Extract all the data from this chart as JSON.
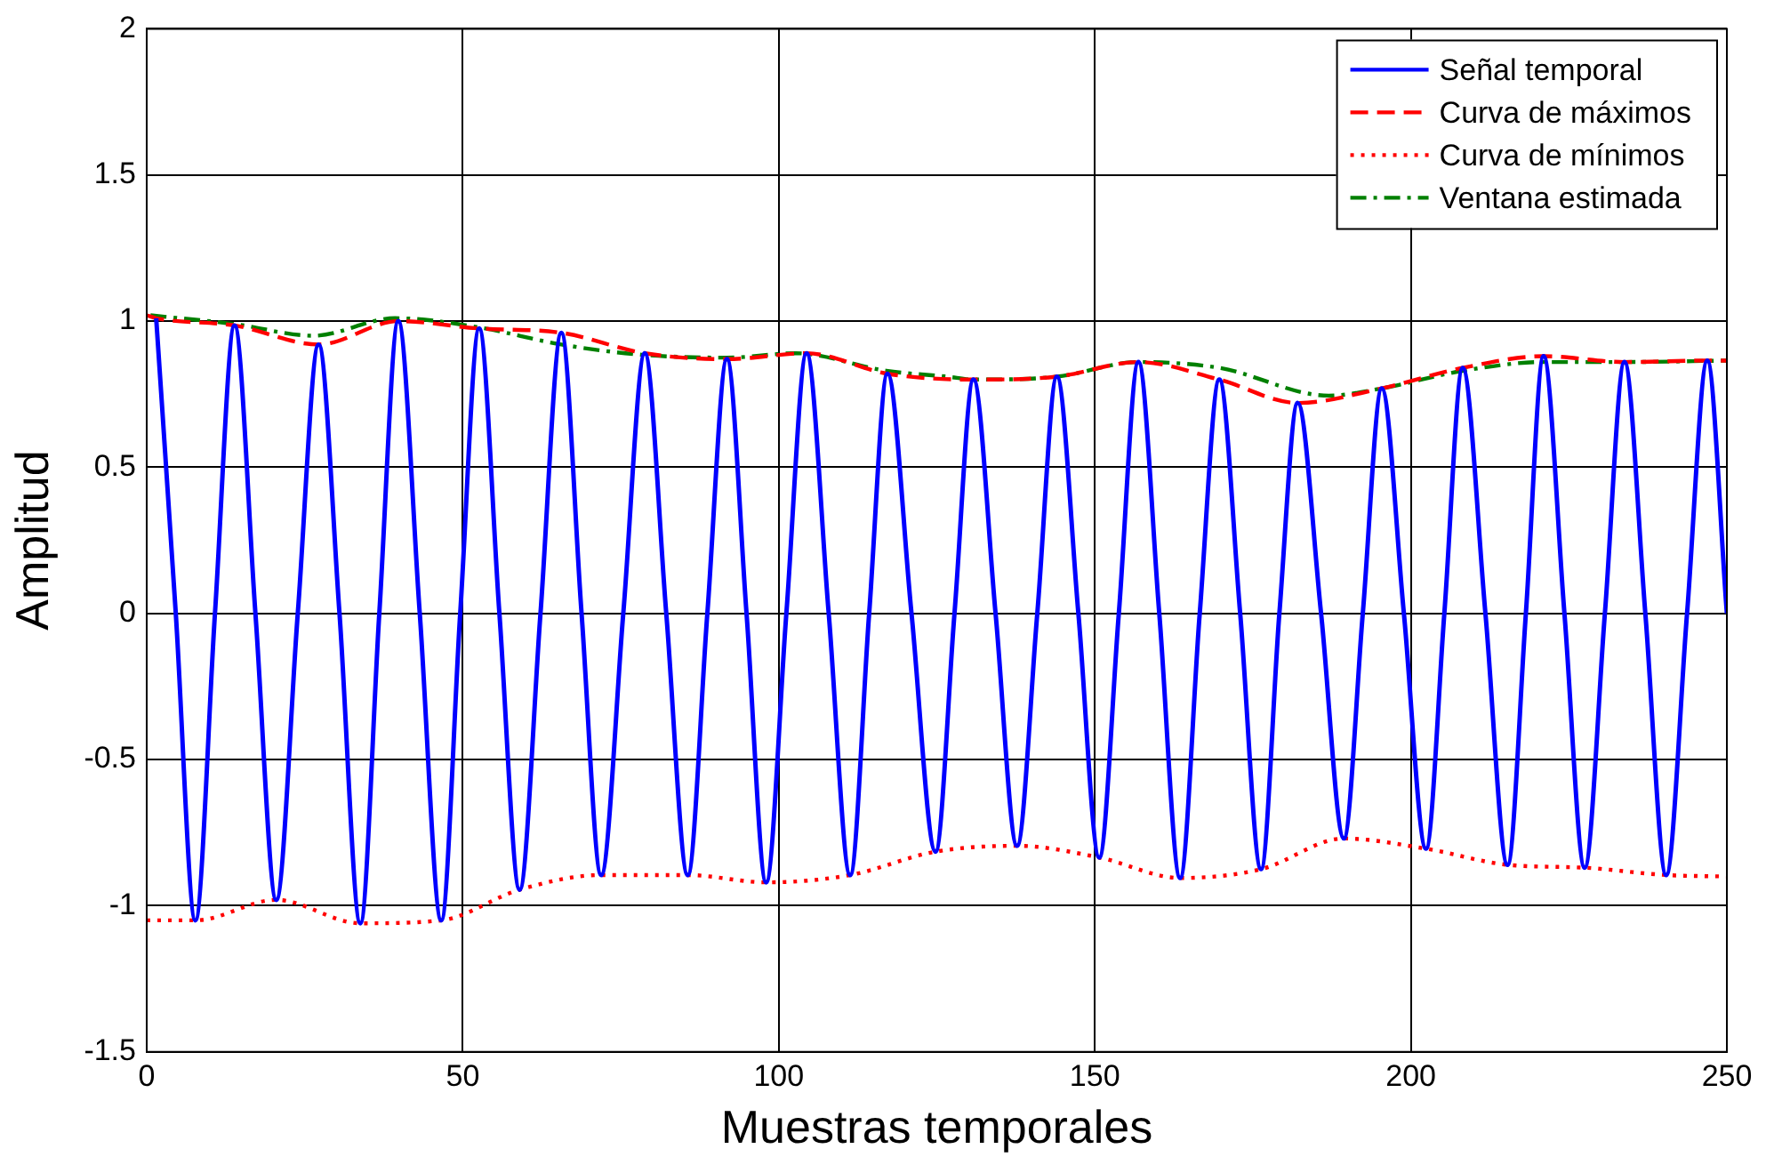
{
  "chart_data": {
    "type": "line",
    "xlabel": "Muestras temporales",
    "ylabel": "Amplitud",
    "xlim": [
      0,
      250
    ],
    "xticks": [
      0,
      50,
      100,
      150,
      200,
      250
    ],
    "ylim": [
      -1.5,
      2
    ],
    "yticks": [
      -1.5,
      -1,
      -0.5,
      0,
      0.5,
      1,
      1.5,
      2
    ],
    "grid": true,
    "legend": "top right",
    "series": [
      {
        "name": "Señal temporal",
        "color": "#0000ff",
        "line_style": "solid",
        "x": [
          1.5,
          4.6,
          7.7,
          10.8,
          13.9,
          17.2,
          20.5,
          23.9,
          27.2,
          30.5,
          33.8,
          36.8,
          39.8,
          43.2,
          46.6,
          49.6,
          52.6,
          55.8,
          59,
          62.3,
          65.6,
          68.8,
          71.9,
          75.4,
          78.8,
          82.2,
          85.6,
          88.7,
          91.8,
          94.9,
          98,
          101.2,
          104.4,
          107.9,
          111.3,
          114.3,
          117.2,
          121,
          124.8,
          127.8,
          130.8,
          134.3,
          137.7,
          140.9,
          144,
          147.4,
          150.7,
          153.8,
          156.9,
          160.2,
          163.5,
          166.6,
          169.7,
          173,
          176.3,
          179.2,
          182.1,
          185.8,
          189.4,
          192.4,
          195.4,
          198.9,
          202.4,
          205.3,
          208.2,
          211.8,
          215.3,
          218.2,
          221,
          224.3,
          227.5,
          230.7,
          233.8,
          237.1,
          240.4,
          243.7,
          246.9,
          250
        ],
        "values": [
          1.01,
          0,
          -1.05,
          0,
          0.985,
          0,
          -0.98,
          0,
          0.92,
          0,
          -1.06,
          0,
          1.0,
          0,
          -1.05,
          0,
          0.975,
          0,
          -0.945,
          0,
          0.96,
          0,
          -0.895,
          0,
          0.89,
          0,
          -0.895,
          0,
          0.87,
          0,
          -0.92,
          0,
          0.89,
          0,
          -0.895,
          0,
          0.82,
          0,
          -0.815,
          0,
          0.8,
          0,
          -0.795,
          0,
          0.81,
          0,
          -0.835,
          0,
          0.86,
          0,
          -0.905,
          0,
          0.8,
          0,
          -0.875,
          0,
          0.72,
          0,
          -0.77,
          0,
          0.77,
          0,
          -0.805,
          0,
          0.84,
          0,
          -0.86,
          0,
          0.88,
          0,
          -0.87,
          0,
          0.86,
          0,
          -0.895,
          0,
          0.865,
          0
        ]
      },
      {
        "name": "Curva de máximos",
        "color": "#ff0000",
        "line_style": "dashed",
        "x": [
          0,
          1.5,
          13.9,
          27.2,
          39.8,
          52.6,
          65.6,
          78.8,
          91.8,
          104.4,
          117.2,
          130.8,
          144,
          156.9,
          169.7,
          182.1,
          195.4,
          208.2,
          221,
          233.8,
          246.9,
          250
        ],
        "values": [
          1.02,
          1.01,
          0.985,
          0.92,
          1.0,
          0.975,
          0.96,
          0.89,
          0.87,
          0.89,
          0.82,
          0.8,
          0.81,
          0.86,
          0.8,
          0.72,
          0.77,
          0.84,
          0.88,
          0.86,
          0.865,
          0.865
        ]
      },
      {
        "name": "Curva de mínimos",
        "color": "#ff0000",
        "line_style": "dotted",
        "x": [
          0,
          7.7,
          20.5,
          33.8,
          46.6,
          59,
          71.9,
          85.6,
          98,
          111.3,
          124.8,
          137.7,
          150.7,
          163.5,
          176.3,
          189.4,
          202.4,
          215.3,
          227.5,
          240.4,
          250
        ],
        "values": [
          -1.05,
          -1.05,
          -0.98,
          -1.06,
          -1.05,
          -0.945,
          -0.895,
          -0.895,
          -0.92,
          -0.895,
          -0.815,
          -0.795,
          -0.835,
          -0.905,
          -0.875,
          -0.77,
          -0.805,
          -0.86,
          -0.87,
          -0.895,
          -0.9
        ]
      },
      {
        "name": "Ventana estimada",
        "color": "#008000",
        "line_style": "dashdot",
        "x": [
          0.6,
          13.9,
          26.4,
          39.3,
          52.2,
          65.6,
          78.3,
          91.8,
          102.7,
          117,
          126.7,
          130.8,
          144,
          156.9,
          169.7,
          187,
          195.4,
          208.2,
          221,
          233.8,
          250
        ],
        "values": [
          1.02,
          0.99,
          0.95,
          1.01,
          0.98,
          0.92,
          0.885,
          0.875,
          0.89,
          0.83,
          0.81,
          0.8,
          0.81,
          0.86,
          0.84,
          0.745,
          0.77,
          0.83,
          0.86,
          0.86,
          0.865
        ]
      }
    ]
  }
}
